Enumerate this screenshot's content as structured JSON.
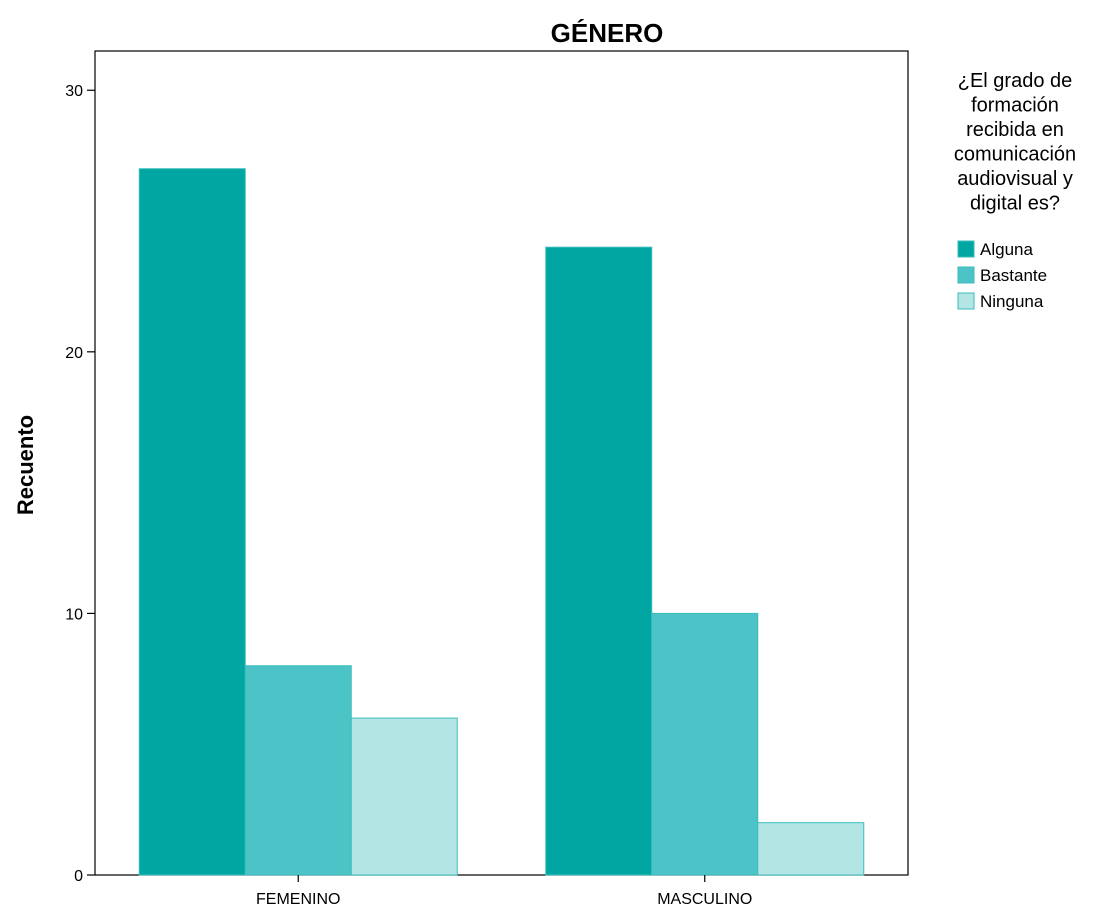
{
  "chart_data": {
    "type": "bar",
    "title": "GÉNERO",
    "xlabel": "",
    "ylabel": "Recuento",
    "categories": [
      "FEMENINO",
      "MASCULINO"
    ],
    "series": [
      {
        "name": "Alguna",
        "values": [
          27,
          24
        ],
        "color": "#00a6a2"
      },
      {
        "name": "Bastante",
        "values": [
          8,
          10
        ],
        "color": "#4cc3c6"
      },
      {
        "name": "Ninguna",
        "values": [
          6,
          2
        ],
        "color": "#b3e5e5"
      }
    ],
    "ylim": [
      0,
      31.5
    ],
    "yticks": [
      0,
      10,
      20,
      30
    ],
    "grid": false,
    "legend": {
      "title_lines": [
        "¿El grado de",
        "formación",
        "recibida en",
        "comunicación",
        "audiovisual y",
        "digital es?"
      ],
      "placement": "right"
    }
  }
}
